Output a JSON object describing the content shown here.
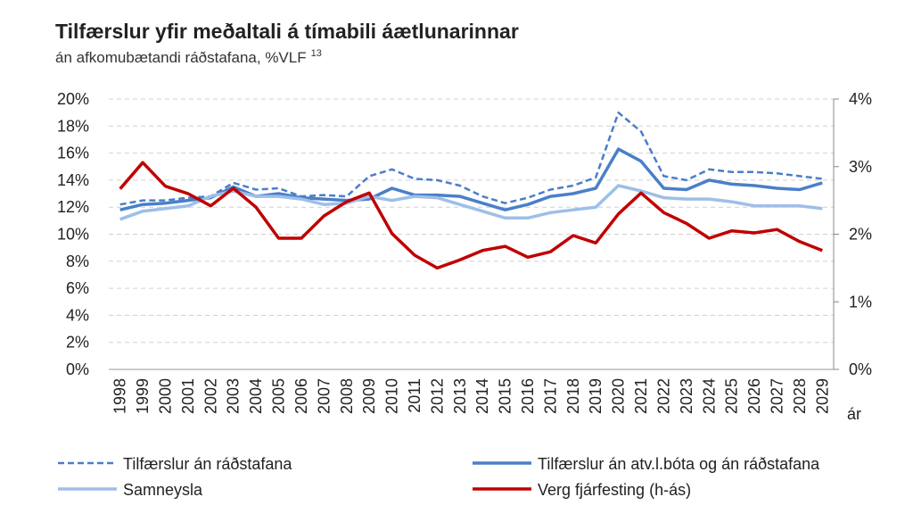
{
  "chart_data": {
    "type": "line",
    "title": "Tilfærslur yfir meðaltali á tímabili áætlunarinnar",
    "subtitle": "án afkomubætandi ráðstafana, %VLF",
    "subtitle_note": "13",
    "x_label": "ár",
    "categories": [
      "1998",
      "1999",
      "2000",
      "2001",
      "2002",
      "2003",
      "2004",
      "2005",
      "2006",
      "2007",
      "2008",
      "2009",
      "2010",
      "2011",
      "2012",
      "2013",
      "2014",
      "2015",
      "2016",
      "2017",
      "2018",
      "2019",
      "2020",
      "2021",
      "2022",
      "2023",
      "2024",
      "2025",
      "2026",
      "2027",
      "2028",
      "2029"
    ],
    "ylim": [
      0,
      20
    ],
    "yticks": [
      {
        "value": 0,
        "label": "0%"
      },
      {
        "value": 2,
        "label": "2%"
      },
      {
        "value": 4,
        "label": "4%"
      },
      {
        "value": 6,
        "label": "6%"
      },
      {
        "value": 8,
        "label": "8%"
      },
      {
        "value": 10,
        "label": "10%"
      },
      {
        "value": 12,
        "label": "12%"
      },
      {
        "value": 14,
        "label": "14%"
      },
      {
        "value": 16,
        "label": "16%"
      },
      {
        "value": 18,
        "label": "18%"
      },
      {
        "value": 20,
        "label": "20%"
      }
    ],
    "y2lim": [
      0,
      4
    ],
    "y2ticks": [
      {
        "value": 0,
        "label": "0%"
      },
      {
        "value": 1,
        "label": "1%"
      },
      {
        "value": 2,
        "label": "2%"
      },
      {
        "value": 3,
        "label": "3%"
      },
      {
        "value": 4,
        "label": "4%"
      }
    ],
    "grid": true,
    "series": [
      {
        "name": "Tilfærslur án ráðstafana",
        "color": "#4a7ec8",
        "style": "dashed",
        "values": [
          12.2,
          12.5,
          12.5,
          12.7,
          12.8,
          13.8,
          13.3,
          13.4,
          12.8,
          12.9,
          12.8,
          14.3,
          14.8,
          14.1,
          14.0,
          13.6,
          12.8,
          12.3,
          12.7,
          13.3,
          13.6,
          14.2,
          19.0,
          17.6,
          14.3,
          14.0,
          14.8,
          14.6,
          14.6,
          14.5,
          14.3,
          14.1
        ]
      },
      {
        "name": "Tilfærslur án atv.l.bóta og án ráðstafana",
        "color": "#4a7fc9",
        "style": "solid",
        "values": [
          11.8,
          12.2,
          12.3,
          12.5,
          12.7,
          13.5,
          12.8,
          13.0,
          12.7,
          12.6,
          12.5,
          12.6,
          13.4,
          12.9,
          12.9,
          12.8,
          12.3,
          11.8,
          12.2,
          12.8,
          13.0,
          13.4,
          16.3,
          15.4,
          13.4,
          13.3,
          14.0,
          13.7,
          13.6,
          13.4,
          13.3,
          13.8
        ]
      },
      {
        "name": "Samneysla",
        "color": "#9dbfe8",
        "style": "solid",
        "values": [
          11.1,
          11.7,
          11.9,
          12.1,
          12.8,
          13.2,
          12.8,
          12.8,
          12.6,
          12.2,
          12.3,
          12.8,
          12.5,
          12.8,
          12.7,
          12.2,
          11.7,
          11.2,
          11.2,
          11.6,
          11.8,
          12.0,
          13.6,
          13.2,
          12.7,
          12.6,
          12.6,
          12.4,
          12.1,
          12.1,
          12.1,
          11.9
        ]
      },
      {
        "name": "Verg fjárfesting (h-ás)",
        "color": "#c00000",
        "style": "solid",
        "axis": "y2",
        "values": [
          2.67,
          3.06,
          2.71,
          2.6,
          2.42,
          2.68,
          2.4,
          1.94,
          1.94,
          2.27,
          2.48,
          2.61,
          2.01,
          1.69,
          1.5,
          1.62,
          1.76,
          1.82,
          1.66,
          1.74,
          1.98,
          1.87,
          2.3,
          2.61,
          2.32,
          2.16,
          1.94,
          2.05,
          2.02,
          2.07,
          1.89,
          1.76
        ]
      }
    ]
  }
}
